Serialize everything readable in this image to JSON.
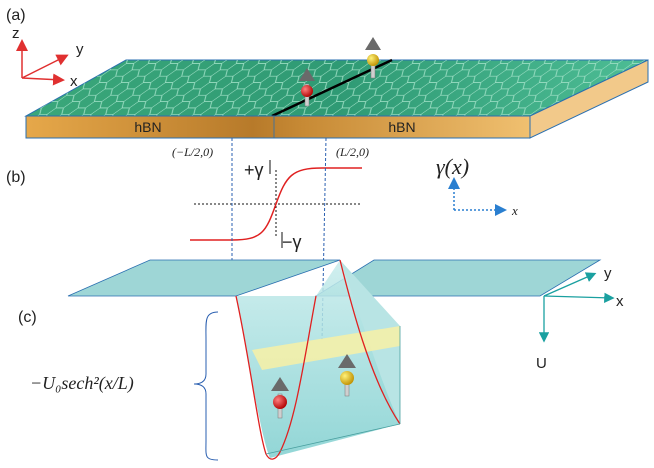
{
  "panels": {
    "a": "(a)",
    "b": "(b)",
    "c": "(c)"
  },
  "axes_a": {
    "z": "z",
    "y": "y",
    "x": "x"
  },
  "substrate": {
    "left": "hBN",
    "right": "hBN"
  },
  "positions": {
    "left": "(−L/2,0)",
    "right": "(L/2,0)"
  },
  "gamma": {
    "plus": "+γ",
    "minus": "−γ",
    "func": "γ(x)",
    "axis_x": "x"
  },
  "axes_c": {
    "y": "y",
    "x": "x",
    "u": "U"
  },
  "potential": {
    "formula": "−U₀sech²(x/L)"
  },
  "colors": {
    "graphene": "#2e9a6c",
    "hbn": "#d8a040",
    "plane": "#8fd0d0",
    "well_curve": "#e02020",
    "guide_lines": "#2a5fb0",
    "axis_red": "#e03030",
    "axis_teal": "#1aa0a0",
    "arrow_blue": "#2a7fd0"
  },
  "icons": [
    "spin-up-red-icon",
    "spin-up-yellow-icon",
    "hexagon-lattice-icon"
  ]
}
